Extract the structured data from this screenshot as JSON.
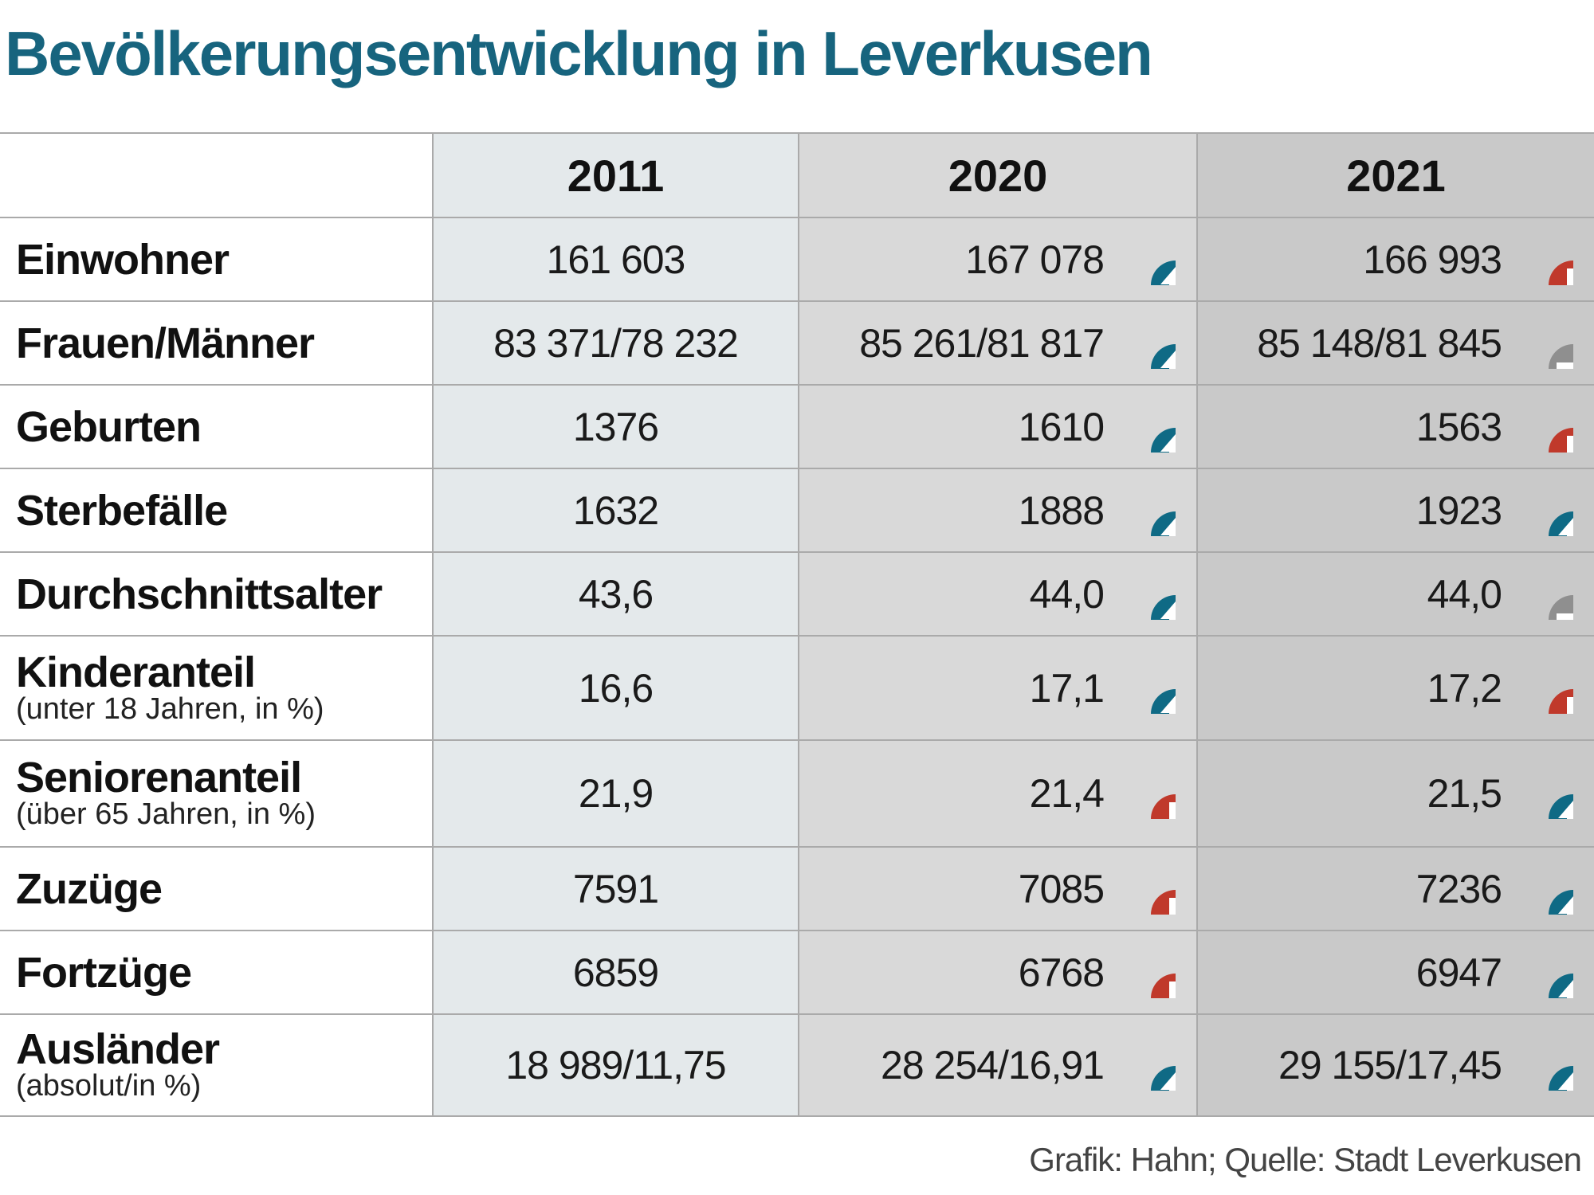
{
  "title": "Bevölkerungsentwicklung in Leverkusen",
  "table": {
    "columns": [
      "2011",
      "2020",
      "2021"
    ],
    "rows": [
      {
        "label": "Einwohner",
        "values": [
          "161 603",
          "167 078",
          "166 993"
        ]
      },
      {
        "label": "Frauen/Männer",
        "values": [
          "83 371/78 232",
          "85 261/81 817",
          "85 148/81 845"
        ]
      },
      {
        "label": "Geburten",
        "values": [
          "1376",
          "1610",
          "1563"
        ]
      },
      {
        "label": "Sterbefälle",
        "values": [
          "1632",
          "1888",
          "1923"
        ]
      },
      {
        "label": "Durchschnittsalter",
        "values": [
          "43,6",
          "44,0",
          "44,0"
        ]
      },
      {
        "label": "Kinderanteil",
        "note": "(unter 18 Jahren, in %)",
        "values": [
          "16,6",
          "17,1",
          "17,2"
        ]
      },
      {
        "label": "Seniorenanteil",
        "note": "(über 65 Jahren, in %)",
        "values": [
          "21,9",
          "21,4",
          "21,5"
        ]
      },
      {
        "label": "Zuzüge",
        "values": [
          "7591",
          "7085",
          "7236"
        ]
      },
      {
        "label": "Fortzüge",
        "values": [
          "6859",
          "6768",
          "6947"
        ]
      },
      {
        "label": "Ausländer",
        "note": "(absolut/in %)",
        "values": [
          "18 989/11,75",
          "28 254/16,91",
          "29 155/17,45"
        ]
      }
    ]
  },
  "source": "Grafik: Hahn; Quelle: Stadt Leverkusen"
}
